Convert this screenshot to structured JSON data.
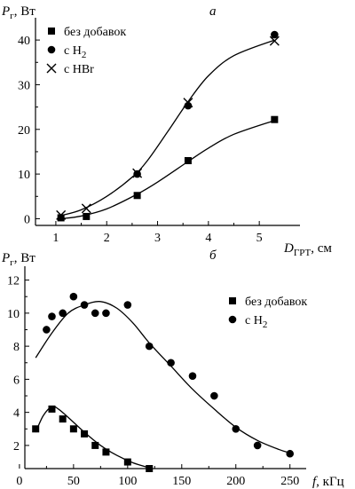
{
  "chart_data": [
    {
      "panel_label": "а",
      "type": "scatter",
      "ylabel": {
        "main": "P",
        "sub": "г",
        "rest": ", Вт"
      },
      "xlabel": {
        "main": "D",
        "sub": "ГРТ",
        "rest": ", см"
      },
      "xlim": [
        0.6,
        5.8
      ],
      "ylim": [
        -1.5,
        43
      ],
      "xticks": [
        1,
        2,
        3,
        4,
        5
      ],
      "yticks": [
        0,
        10,
        20,
        30,
        40
      ],
      "series": [
        {
          "name": "без добавок",
          "marker": "square",
          "x": [
            1.1,
            1.6,
            2.6,
            3.6,
            5.3
          ],
          "y": [
            0.2,
            0.5,
            5.2,
            13.0,
            22.2
          ],
          "curve_x": [
            1.1,
            1.5,
            2.0,
            2.6,
            3.0,
            3.6,
            4.0,
            4.5,
            5.3
          ],
          "curve_y": [
            0,
            0.6,
            2.2,
            5.5,
            8.2,
            12.8,
            15.8,
            18.9,
            22.0
          ]
        },
        {
          "name": "с H",
          "name_sub": "2",
          "marker": "circle",
          "x": [
            2.6,
            3.6,
            5.3
          ],
          "y": [
            10.0,
            25.3,
            41.2
          ],
          "curve_x": [
            1.1,
            1.5,
            2.0,
            2.5,
            2.8,
            3.2,
            3.6,
            4.0,
            4.5,
            5.3
          ],
          "curve_y": [
            0.7,
            2.0,
            5.0,
            9.3,
            13.0,
            19.5,
            26.2,
            32.0,
            36.5,
            40.0
          ]
        },
        {
          "name": "с HBr",
          "marker": "cross",
          "x": [
            1.1,
            1.6,
            2.6,
            3.6,
            5.3
          ],
          "y": [
            0.8,
            2.3,
            10.2,
            26.0,
            39.8
          ]
        }
      ]
    },
    {
      "panel_label": "б",
      "type": "scatter",
      "ylabel": {
        "main": "P",
        "sub": "г",
        "rest": ", Вт"
      },
      "xlabel": {
        "main": "f",
        "sub": "",
        "rest": ", кГц"
      },
      "xlim": [
        5,
        265
      ],
      "ylim": [
        0.6,
        12.3
      ],
      "xticks": [
        0,
        50,
        100,
        150,
        200,
        250
      ],
      "yticks": [
        2,
        4,
        6,
        8,
        10,
        12
      ],
      "series": [
        {
          "name": "без добавок",
          "marker": "square",
          "x": [
            15,
            30,
            40,
            50,
            60,
            70,
            80,
            100,
            120
          ],
          "y": [
            3.0,
            4.2,
            3.6,
            3.0,
            2.7,
            2.0,
            1.6,
            1.0,
            0.6
          ],
          "curve_x": [
            15,
            22,
            30,
            36,
            45,
            60,
            75,
            90,
            105,
            120
          ],
          "curve_y": [
            2.8,
            3.8,
            4.35,
            4.2,
            3.7,
            2.8,
            2.0,
            1.4,
            0.95,
            0.65
          ]
        },
        {
          "name": "с H",
          "name_sub": "2",
          "marker": "circle",
          "x": [
            25,
            30,
            40,
            50,
            60,
            70,
            80,
            100,
            120,
            140,
            160,
            180,
            200,
            220,
            250
          ],
          "y": [
            9.0,
            9.8,
            10.0,
            11.0,
            10.5,
            10.0,
            10.0,
            10.5,
            8.0,
            7.0,
            6.2,
            5.0,
            3.0,
            2.0,
            1.5
          ],
          "curve_x": [
            15,
            30,
            45,
            60,
            75,
            90,
            105,
            120,
            140,
            160,
            180,
            200,
            220,
            240,
            250
          ],
          "curve_y": [
            7.3,
            8.8,
            10.0,
            10.5,
            10.7,
            10.3,
            9.4,
            8.2,
            6.8,
            5.4,
            4.2,
            3.1,
            2.3,
            1.75,
            1.55
          ]
        }
      ]
    }
  ]
}
